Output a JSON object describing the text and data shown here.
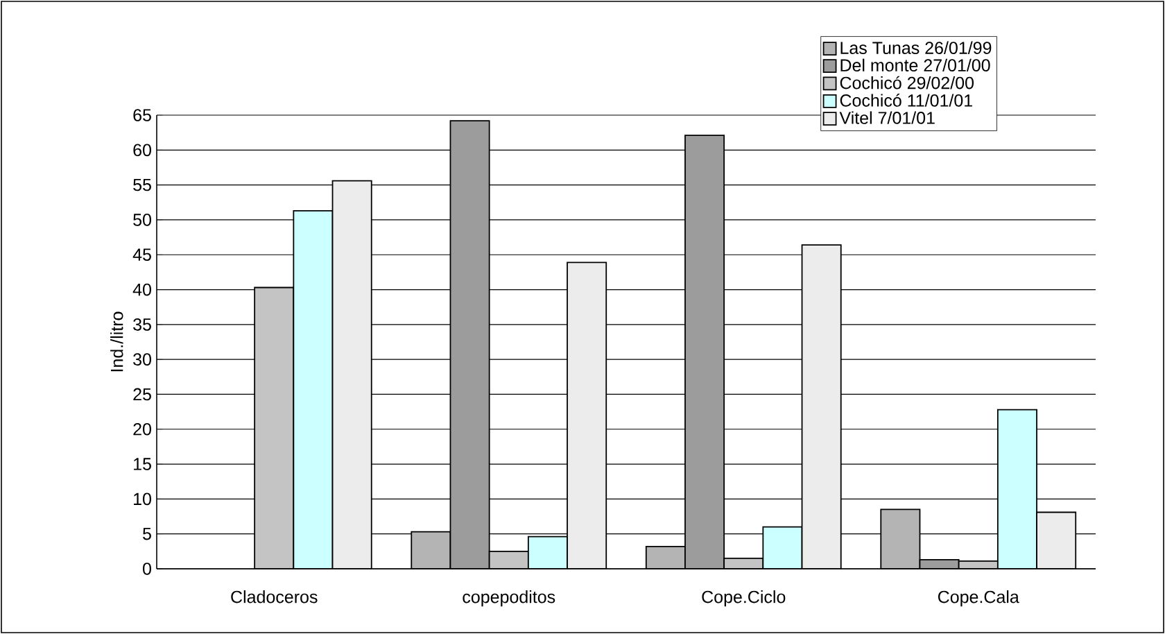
{
  "chart_data": {
    "type": "bar",
    "ylabel": "Ind./litro",
    "categories": [
      "Cladoceros",
      "copepoditos",
      "Cope.Ciclo",
      "Cope.Cala"
    ],
    "series": [
      {
        "name": "Las Tunas 26/01/99",
        "color": "#b4b4b4",
        "values": [
          null,
          5.3,
          3.2,
          8.5
        ]
      },
      {
        "name": "Del monte 27/01/00",
        "color": "#9c9c9c",
        "values": [
          null,
          64.2,
          62.1,
          1.3
        ]
      },
      {
        "name": "Cochicó 29/02/00",
        "color": "#c4c4c4",
        "values": [
          40.3,
          2.5,
          1.5,
          1.1
        ]
      },
      {
        "name": "Cochicó 11/01/01",
        "color": "#ccffff",
        "values": [
          51.3,
          4.6,
          6.0,
          22.8
        ]
      },
      {
        "name": "Vitel 7/01/01",
        "color": "#ececec",
        "values": [
          55.6,
          43.9,
          46.4,
          8.1
        ]
      }
    ],
    "ylim": [
      0,
      65
    ],
    "yticks": [
      0,
      5,
      10,
      15,
      20,
      25,
      30,
      35,
      40,
      45,
      50,
      55,
      60,
      65
    ],
    "grid": "y",
    "legend": "top right"
  }
}
